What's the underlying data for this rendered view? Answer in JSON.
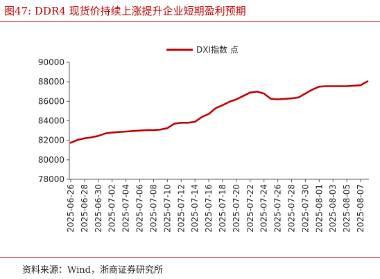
{
  "figure_title": "图47:  DDR4 现货价持续上涨提升企业短期盈利预期",
  "source": "资料来源：Wind，浙商证券研究所",
  "colors": {
    "accent": "#c00000",
    "series": "#c00000"
  },
  "chart_data": {
    "type": "line",
    "title": "",
    "xlabel": "",
    "ylabel": "",
    "ylim": [
      78000,
      90000
    ],
    "yticks": [
      78000,
      80000,
      82000,
      84000,
      86000,
      88000,
      90000
    ],
    "xticks": [
      "2025-06-26",
      "2025-06-28",
      "2025-06-30",
      "2025-07-02",
      "2025-07-04",
      "2025-07-06",
      "2025-07-08",
      "2025-07-10",
      "2025-07-12",
      "2025-07-14",
      "2025-07-16",
      "2025-07-18",
      "2025-07-20",
      "2025-07-22",
      "2025-07-24",
      "2025-07-26",
      "2025-07-28",
      "2025-07-30",
      "2025-08-01",
      "2025-08-03",
      "2025-08-05",
      "2025-08-07"
    ],
    "grid": false,
    "legend_position": "top",
    "series": [
      {
        "name": "DXI指数 点",
        "color": "#c00000",
        "x": [
          "2025-06-26",
          "2025-06-27",
          "2025-06-28",
          "2025-06-29",
          "2025-06-30",
          "2025-07-01",
          "2025-07-02",
          "2025-07-03",
          "2025-07-04",
          "2025-07-05",
          "2025-07-06",
          "2025-07-07",
          "2025-07-08",
          "2025-07-09",
          "2025-07-10",
          "2025-07-11",
          "2025-07-12",
          "2025-07-13",
          "2025-07-14",
          "2025-07-15",
          "2025-07-16",
          "2025-07-17",
          "2025-07-18",
          "2025-07-19",
          "2025-07-20",
          "2025-07-21",
          "2025-07-22",
          "2025-07-23",
          "2025-07-24",
          "2025-07-25",
          "2025-07-26",
          "2025-07-27",
          "2025-07-28",
          "2025-07-29",
          "2025-07-30",
          "2025-07-31",
          "2025-08-01",
          "2025-08-02",
          "2025-08-03",
          "2025-08-04",
          "2025-08-05",
          "2025-08-06",
          "2025-08-07",
          "2025-08-08"
        ],
        "values": [
          81750,
          82050,
          82200,
          82300,
          82450,
          82700,
          82800,
          82850,
          82900,
          82950,
          83000,
          83050,
          83050,
          83100,
          83250,
          83700,
          83800,
          83800,
          83900,
          84400,
          84700,
          85300,
          85600,
          85950,
          86200,
          86550,
          86900,
          87000,
          86800,
          86250,
          86200,
          86250,
          86300,
          86400,
          86800,
          87200,
          87500,
          87550,
          87550,
          87550,
          87550,
          87600,
          87650,
          88050
        ]
      }
    ]
  }
}
